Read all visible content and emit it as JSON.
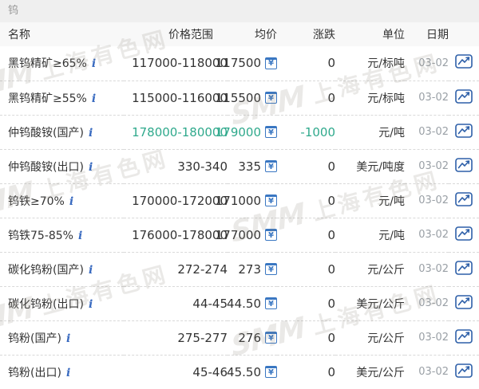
{
  "page": {
    "title": "钨"
  },
  "table": {
    "columns": [
      "名称",
      "价格范围",
      "均价",
      "涨跌",
      "单位",
      "日期"
    ],
    "rows": [
      {
        "name": "黑钨精矿≥65%",
        "range": "117000-118000",
        "avg": "117500",
        "change": "0",
        "unit": "元/标吨",
        "date": "03-02",
        "trend": "flat"
      },
      {
        "name": "黑钨精矿≥55%",
        "range": "115000-116000",
        "avg": "115500",
        "change": "0",
        "unit": "元/标吨",
        "date": "03-02",
        "trend": "flat"
      },
      {
        "name": "仲钨酸铵(国产)",
        "range": "178000-180000",
        "avg": "179000",
        "change": "-1000",
        "unit": "元/吨",
        "date": "03-02",
        "trend": "down"
      },
      {
        "name": "仲钨酸铵(出口)",
        "range": "330-340",
        "avg": "335",
        "change": "0",
        "unit": "美元/吨度",
        "date": "03-02",
        "trend": "flat"
      },
      {
        "name": "钨铁≥70%",
        "range": "170000-172000",
        "avg": "171000",
        "change": "0",
        "unit": "元/吨",
        "date": "03-02",
        "trend": "flat"
      },
      {
        "name": "钨铁75-85%",
        "range": "176000-178000",
        "avg": "177000",
        "change": "0",
        "unit": "元/吨",
        "date": "03-02",
        "trend": "flat"
      },
      {
        "name": "碳化钨粉(国产)",
        "range": "272-274",
        "avg": "273",
        "change": "0",
        "unit": "元/公斤",
        "date": "03-02",
        "trend": "flat"
      },
      {
        "name": "碳化钨粉(出口)",
        "range": "44-45",
        "avg": "44.50",
        "change": "0",
        "unit": "美元/公斤",
        "date": "03-02",
        "trend": "flat"
      },
      {
        "name": "钨粉(国产)",
        "range": "275-277",
        "avg": "276",
        "change": "0",
        "unit": "元/公斤",
        "date": "03-02",
        "trend": "flat"
      },
      {
        "name": "钨粉(出口)",
        "range": "45-46",
        "avg": "45.50",
        "change": "0",
        "unit": "美元/公斤",
        "date": "03-02",
        "trend": "flat"
      }
    ]
  },
  "icons": {
    "info": "i",
    "price_history": "¥",
    "trend_chart": "line-chart"
  },
  "watermark": {
    "brand": "SMM",
    "text": "上海有色网"
  },
  "colors": {
    "down_green": "#2fa98c",
    "icon_blue": "#3a77c2",
    "chart_blue": "#2d5fa8",
    "date_gray": "#9aa0a6",
    "title_gray": "#999999"
  }
}
